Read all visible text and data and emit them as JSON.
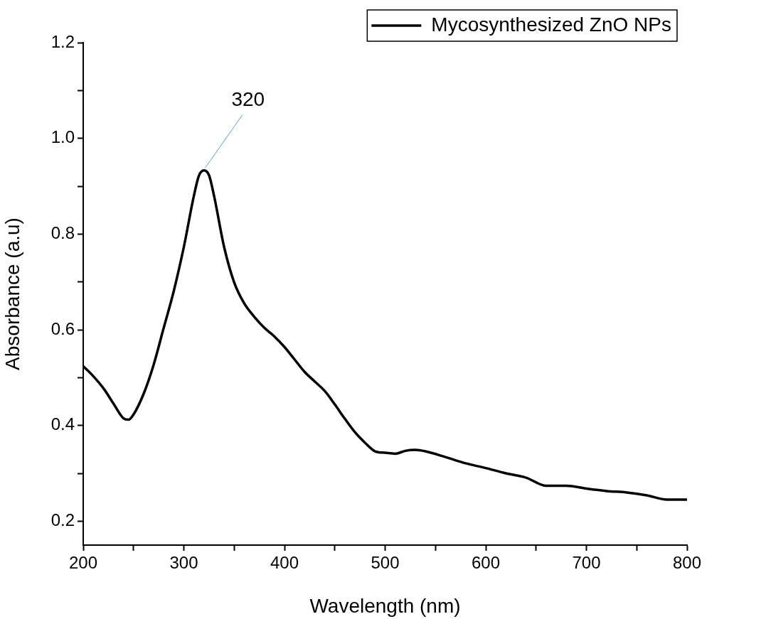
{
  "chart_data": {
    "type": "line",
    "xlabel": "Wavelength (nm)",
    "ylabel": "Absorbance (a.u)",
    "xlim": [
      200,
      800
    ],
    "ylim": [
      0.15,
      1.2
    ],
    "xticks": [
      200,
      {
        "value": 250,
        "label": null
      },
      300,
      {
        "value": 350,
        "label": null
      },
      400,
      {
        "value": 450,
        "label": null
      },
      500,
      {
        "value": 550,
        "label": null
      },
      600,
      {
        "value": 650,
        "label": null
      },
      700,
      {
        "value": 750,
        "label": null
      },
      800
    ],
    "yticks": [
      {
        "value": 0.2,
        "label": "0.2"
      },
      {
        "value": 0.3,
        "label": null
      },
      {
        "value": 0.4,
        "label": "0.4"
      },
      {
        "value": 0.5,
        "label": null
      },
      {
        "value": 0.6,
        "label": "0.6"
      },
      {
        "value": 0.7,
        "label": null
      },
      {
        "value": 0.8,
        "label": "0.8"
      },
      {
        "value": 0.9,
        "label": null
      },
      {
        "value": 1.0,
        "label": "1.0"
      },
      {
        "value": 1.1,
        "label": null
      },
      {
        "value": 1.2,
        "label": "1.2"
      }
    ],
    "grid": false,
    "legend": "top right",
    "marker": "none",
    "line_style": "solid",
    "annotations": [
      {
        "text": "320",
        "x": 320,
        "y": 0.933
      }
    ],
    "series": [
      {
        "name": "Mycosynthesized ZnO NPs",
        "color": "#000000",
        "x": [
          200,
          210,
          220,
          230,
          240,
          245,
          250,
          260,
          270,
          280,
          290,
          300,
          310,
          315,
          320,
          325,
          330,
          340,
          350,
          360,
          370,
          380,
          390,
          400,
          410,
          420,
          430,
          440,
          450,
          460,
          470,
          480,
          490,
          500,
          510,
          520,
          530,
          540,
          560,
          580,
          600,
          620,
          640,
          660,
          680,
          700,
          720,
          740,
          760,
          780,
          800
        ],
        "values": [
          0.524,
          0.503,
          0.478,
          0.446,
          0.415,
          0.412,
          0.423,
          0.466,
          0.527,
          0.604,
          0.681,
          0.773,
          0.88,
          0.922,
          0.933,
          0.923,
          0.88,
          0.773,
          0.699,
          0.655,
          0.627,
          0.604,
          0.586,
          0.564,
          0.538,
          0.512,
          0.492,
          0.472,
          0.444,
          0.414,
          0.386,
          0.364,
          0.346,
          0.343,
          0.341,
          0.347,
          0.349,
          0.346,
          0.334,
          0.321,
          0.311,
          0.3,
          0.291,
          0.274,
          0.274,
          0.268,
          0.263,
          0.26,
          0.254,
          0.245,
          0.245
        ]
      }
    ]
  }
}
